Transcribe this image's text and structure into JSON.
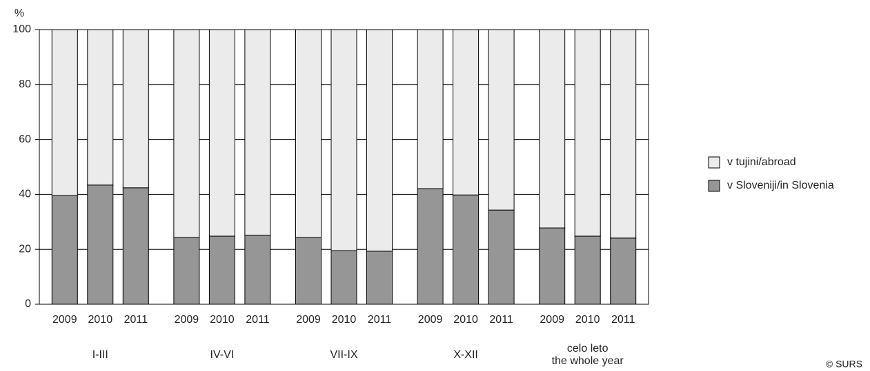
{
  "chart_data": {
    "type": "stacked_bar",
    "y_label": "%",
    "source": "© SURS",
    "categories": [
      "2009",
      "2010",
      "2011",
      "2009",
      "2010",
      "2011",
      "2009",
      "2010",
      "2011",
      "2009",
      "2010",
      "2011",
      "2009",
      "2010",
      "2011"
    ],
    "groups": [
      {
        "lines": [
          "I-III"
        ],
        "size": 3
      },
      {
        "lines": [
          "IV-VI"
        ],
        "size": 3
      },
      {
        "lines": [
          "VII-IX"
        ],
        "size": 3
      },
      {
        "lines": [
          "X-XII"
        ],
        "size": 3
      },
      {
        "lines": [
          "celo leto",
          "the whole year"
        ],
        "size": 3
      }
    ],
    "series": [
      {
        "name": "v tujini/abroad",
        "color": "#ebebeb",
        "values": [
          60.4,
          56.6,
          57.6,
          75.7,
          75.2,
          74.9,
          75.7,
          80.5,
          80.7,
          57.9,
          60.2,
          65.7,
          72.2,
          75.2,
          75.9
        ]
      },
      {
        "name": "v Sloveniji/in Slovenia",
        "color": "#969696",
        "values": [
          39.6,
          43.4,
          42.4,
          24.3,
          24.8,
          25.1,
          24.3,
          19.5,
          19.3,
          42.1,
          39.8,
          34.3,
          27.8,
          24.8,
          24.1
        ]
      }
    ],
    "ylim": [
      0,
      100
    ],
    "yticks": [
      0,
      20,
      40,
      60,
      80,
      100
    ],
    "grid": true,
    "legend": "right"
  }
}
